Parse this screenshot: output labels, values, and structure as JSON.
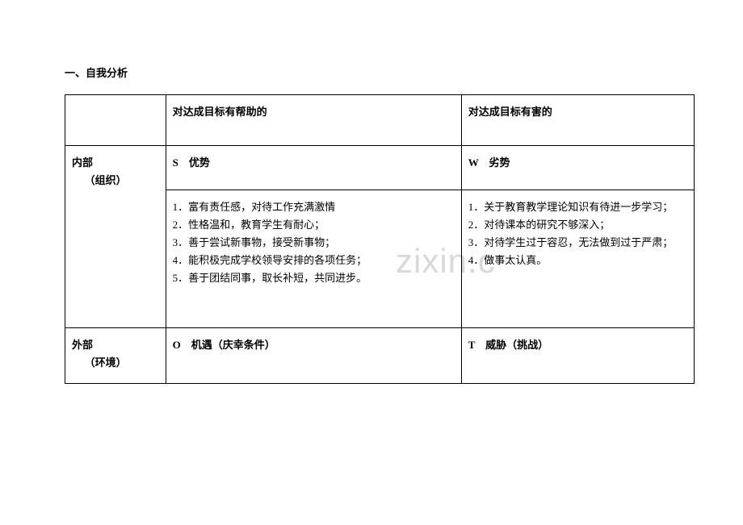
{
  "heading": "一、自我分析",
  "header": {
    "col1": "",
    "col2": "对达成目标有帮助的",
    "col3": "对达成目标有害的"
  },
  "row_internal_label": {
    "line1": "内部",
    "line2": "（组织）",
    "s_label": "S　优势",
    "w_label": "W　劣势"
  },
  "strengths": {
    "i1": "1．富有责任感，对待工作充满激情",
    "i2": "2．性格温和，教育学生有耐心；",
    "i3": "3．善于尝试新事物，接受新事物；",
    "i4": "4．能积极完成学校领导安排的各项任务；",
    "i5": "5．善于团结同事，取长补短，共同进步。"
  },
  "weaknesses": {
    "i1": "1．关于教育教学理论知识有待进一步学习；",
    "i2": "2．对待课本的研究不够深入；",
    "i3": "3．对待学生过于容忍，无法做到过于严肃；",
    "i4": "4．做事太认真。"
  },
  "row_external_label": {
    "line1": "外部",
    "line2": "（环境）",
    "o_label": "O　机遇（庆幸条件）",
    "t_label": "T　威胁（挑战）"
  },
  "watermark": "zixin.c",
  "style": {
    "font_family": "SimSun",
    "font_size_body": 13,
    "font_size_watermark": 42,
    "text_color": "#000000",
    "border_color": "#000000",
    "watermark_color": "#d9d9d9",
    "background_color": "#ffffff",
    "border_width": 1.5,
    "col_widths_percent": [
      16,
      47,
      37
    ]
  }
}
